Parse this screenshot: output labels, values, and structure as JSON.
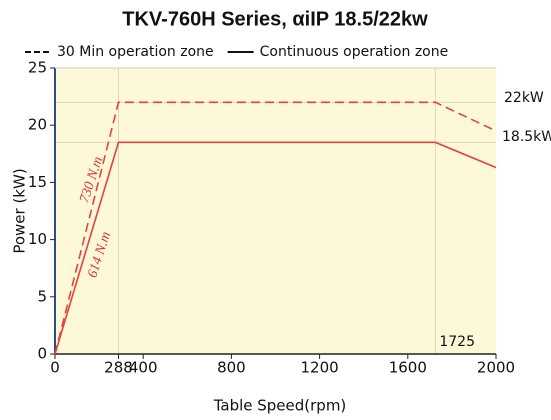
{
  "chart_data": {
    "type": "line",
    "title": "TKV-760H Series, αiIP  18.5/22kw",
    "x_label": "Table Speed(rpm)",
    "y_label": "Power (kW)",
    "x": [
      0,
      288,
      1725,
      2000
    ],
    "series": [
      {
        "name": "30 Min operation zone",
        "color": "#e8413c",
        "dash": true,
        "values": [
          0,
          22,
          22,
          19.5
        ]
      },
      {
        "name": "Continuous operation zone",
        "color": "#e8413c",
        "dash": false,
        "values": [
          0,
          18.5,
          18.5,
          16.3
        ]
      }
    ],
    "xlim": [
      0,
      2000
    ],
    "xticks": [
      0,
      288,
      400,
      800,
      1200,
      1600,
      2000
    ],
    "ylim": [
      0,
      25
    ],
    "yticks": [
      0,
      5,
      10,
      15,
      20,
      25
    ],
    "annotations": [
      "22kW",
      "18.5kW",
      "730 N.m",
      "614 N.m",
      "1725"
    ],
    "background": "#fdf9d8"
  }
}
